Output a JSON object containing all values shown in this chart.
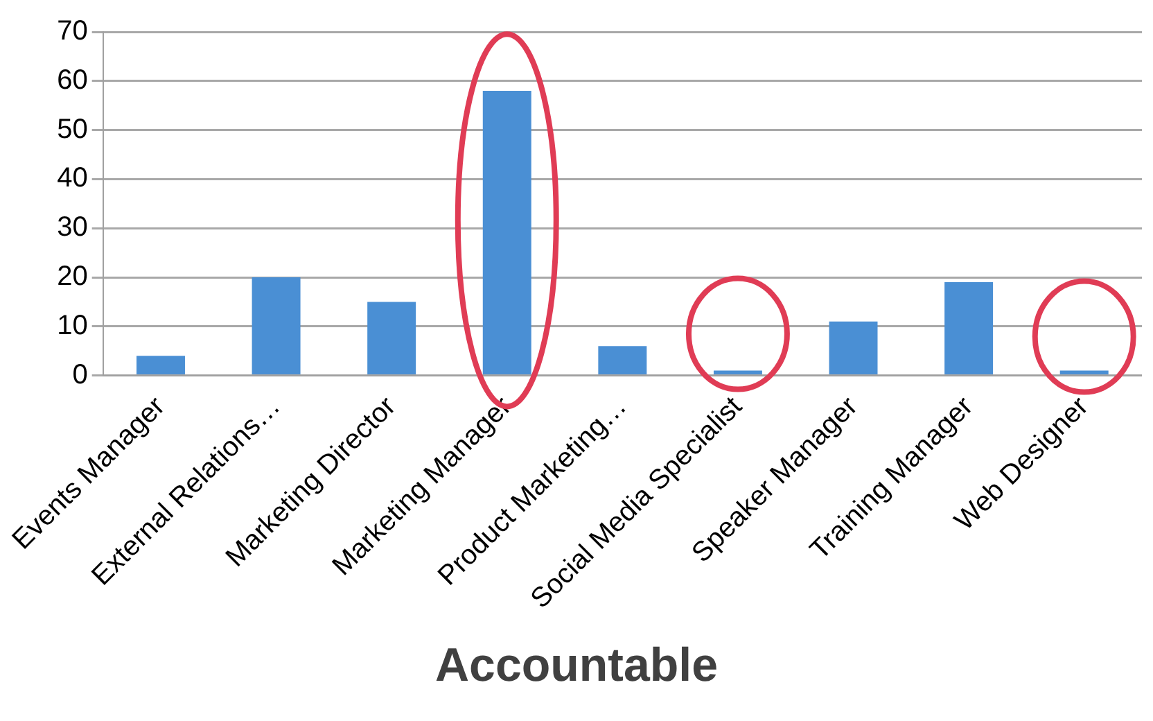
{
  "chart_data": {
    "type": "bar",
    "title": "Accountable",
    "categories": [
      "Events Manager",
      "External Relations…",
      "Marketing Director",
      "Marketing Manager",
      "Product Marketing…",
      "Social Media Specialist",
      "Speaker Manager",
      "Training Manager",
      "Web Designer"
    ],
    "values": [
      4,
      20,
      15,
      58,
      6,
      1,
      11,
      19,
      1
    ],
    "color": "#4a8fd4",
    "ylim": [
      0,
      70
    ],
    "yticks": [
      0,
      10,
      20,
      30,
      40,
      50,
      60,
      70
    ],
    "grid": "y",
    "legend": false
  }
}
